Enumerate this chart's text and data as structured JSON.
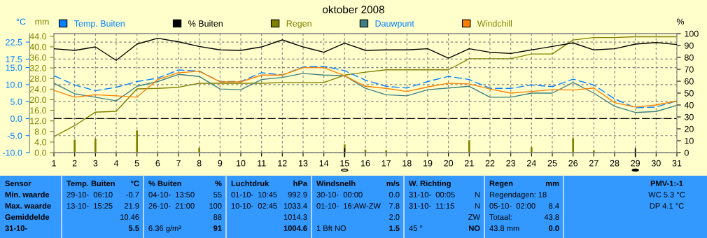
{
  "chart_data": {
    "type": "line",
    "title": "oktober 2008",
    "ylabel": "°C",
    "y2label": "mm",
    "y3label": "%",
    "x": [
      1,
      2,
      3,
      4,
      5,
      6,
      7,
      8,
      9,
      10,
      11,
      12,
      13,
      14,
      15,
      16,
      17,
      18,
      19,
      20,
      21,
      22,
      23,
      24,
      25,
      26,
      27,
      28,
      29,
      30,
      31
    ],
    "xlim": [
      1,
      31
    ],
    "xticks": [
      1,
      2,
      3,
      4,
      5,
      6,
      7,
      8,
      9,
      10,
      11,
      12,
      13,
      14,
      15,
      16,
      17,
      18,
      19,
      20,
      21,
      22,
      23,
      24,
      25,
      26,
      27,
      28,
      29,
      30,
      31
    ],
    "ylim": [
      -10,
      25
    ],
    "yticks": [
      {
        "value": -10,
        "label": "-10.0"
      },
      {
        "value": -5,
        "label": "-5.0"
      },
      {
        "value": 0,
        "label": "0.0"
      },
      {
        "value": 5,
        "label": "5.0"
      },
      {
        "value": 10,
        "label": "10.0"
      },
      {
        "value": 15,
        "label": "15.0"
      },
      17.5,
      22.5
    ],
    "y2lim": [
      0,
      45
    ],
    "y2ticks": [
      {
        "value": 0,
        "label": "0.0"
      },
      {
        "value": 4,
        "label": "4.0"
      },
      {
        "value": 8,
        "label": "8.0"
      },
      {
        "value": 12,
        "label": "12.0"
      },
      {
        "value": 16,
        "label": "16.0"
      },
      {
        "value": 20,
        "label": "20.0"
      },
      {
        "value": 24,
        "label": "24.0"
      },
      {
        "value": 28,
        "label": "28.0"
      },
      {
        "value": 32,
        "label": "32.0"
      },
      {
        "value": 36,
        "label": "36.0"
      },
      {
        "value": 40,
        "label": "40.0"
      },
      {
        "value": 44,
        "label": "44.0"
      }
    ],
    "y3lim": [
      0,
      100
    ],
    "y3ticks": [
      0,
      10,
      20,
      30,
      40,
      50,
      60,
      70,
      80,
      90,
      100
    ],
    "grid": true,
    "legend": "top",
    "series": [
      {
        "name": "Temp. Buiten",
        "color": "#0080ff",
        "axis": "y",
        "line_style": "dashed",
        "values": [
          12.6,
          9.9,
          8.2,
          9.2,
          10.9,
          11.9,
          14.3,
          14.0,
          10.9,
          10.9,
          13.5,
          12.8,
          15.2,
          15.4,
          14.1,
          11.3,
          9.5,
          9.0,
          10.9,
          12.4,
          11.5,
          8.9,
          8.9,
          9.9,
          9.4,
          11.6,
          9.9,
          5.8,
          3.2,
          3.4,
          5.2
        ]
      },
      {
        "name": "% Buiten",
        "color": "#000000",
        "axis": "y3",
        "values": [
          87.3,
          85.9,
          88.8,
          77.5,
          91.2,
          96.1,
          93.1,
          89.2,
          86.3,
          85.9,
          88.8,
          94.7,
          88.8,
          84.3,
          92.0,
          85.9,
          86.3,
          86.3,
          87.3,
          79.4,
          87.3,
          84.3,
          83.3,
          86.3,
          89.2,
          92.2,
          86.3,
          87.3,
          91.2,
          92.5,
          90.8
        ]
      },
      {
        "name": "Regen",
        "color": "#808000",
        "axis": "y2",
        "values": [
          6.0,
          10.2,
          15.3,
          15.6,
          24.1,
          24.3,
          24.7,
          26.2,
          26.2,
          26.2,
          26.2,
          26.5,
          26.5,
          26.5,
          29.3,
          30.4,
          31.3,
          31.3,
          31.3,
          31.3,
          35.5,
          35.5,
          35.5,
          37.3,
          37.3,
          42.6,
          43.5,
          43.5,
          43.8,
          43.8,
          43.8
        ]
      },
      {
        "type": "bar",
        "color": "#808000",
        "axis": "y2",
        "values": [
          null,
          4.9,
          5.3,
          null,
          8.4,
          null,
          null,
          1.8,
          null,
          null,
          null,
          null,
          null,
          null,
          3.1,
          1.1,
          0.9,
          null,
          null,
          null,
          4.7,
          null,
          null,
          2.0,
          null,
          5.5,
          0.9,
          null,
          null,
          null,
          null
        ]
      },
      {
        "name": "Dauwpunt",
        "color": "#408080",
        "axis": "y",
        "values": [
          10.4,
          7.3,
          6.3,
          5.2,
          9.5,
          10.9,
          13.0,
          12.4,
          8.7,
          8.5,
          11.5,
          12.1,
          13.3,
          12.8,
          12.6,
          8.9,
          7.0,
          6.7,
          8.5,
          9.0,
          9.5,
          6.3,
          6.3,
          7.5,
          7.5,
          10.6,
          7.5,
          3.6,
          1.8,
          2.1,
          3.9
        ]
      },
      {
        "name": "Windchill",
        "color": "#ff8000",
        "axis": "y",
        "values": [
          8.3,
          6.3,
          7.0,
          6.7,
          6.3,
          11.5,
          13.5,
          13.9,
          10.8,
          10.8,
          12.8,
          12.8,
          15.0,
          15.0,
          12.6,
          9.5,
          8.9,
          8.0,
          9.3,
          10.4,
          10.2,
          8.7,
          7.5,
          8.0,
          8.5,
          8.4,
          9.0,
          4.7,
          3.4,
          4.0,
          5.2
        ]
      }
    ],
    "ref_lines": [
      {
        "axis": "y",
        "value": 0,
        "color": "#000000",
        "line_style": "dashed"
      }
    ],
    "annotations": [
      "Sensor",
      "Min. waarde",
      "Max. waarde",
      "Gemiddelde",
      "31-10-",
      "Temp. Buiten",
      "°C",
      "29-10-  06:10",
      "-0.7",
      "13-10-  15:25",
      "21.9",
      "10.46",
      "5.5",
      "% Buiten",
      "%",
      "04-10-  13:50",
      "55",
      "26-10-  21:00",
      "100",
      "88",
      "6.36 g/m³",
      "91",
      "Luchtdruk",
      "hPa",
      "01-10-  10:45",
      "992.9",
      "10-10-  02:45",
      "1033.4",
      "1014.3",
      "1004.6",
      "Windsnelh",
      "m/s",
      "30-10-  00:00",
      "0.0",
      "01-10-  16:AW-ZW",
      "7.8",
      "2.0",
      "1 Bft NO",
      "1.5",
      "W. Richting",
      "31-10-  00:05",
      "N",
      "31-10-  11:15",
      "N",
      "ZW",
      "45 °",
      "NO",
      "Regen",
      "mm",
      "Regendagen: 18",
      "05-10-  02:00",
      "8.4",
      "Totaal:",
      "43.8",
      "43.8 mm",
      "0.0",
      "PMV-1:-1",
      "WC 5.3 °C",
      "DP 4.1 °C"
    ]
  }
}
